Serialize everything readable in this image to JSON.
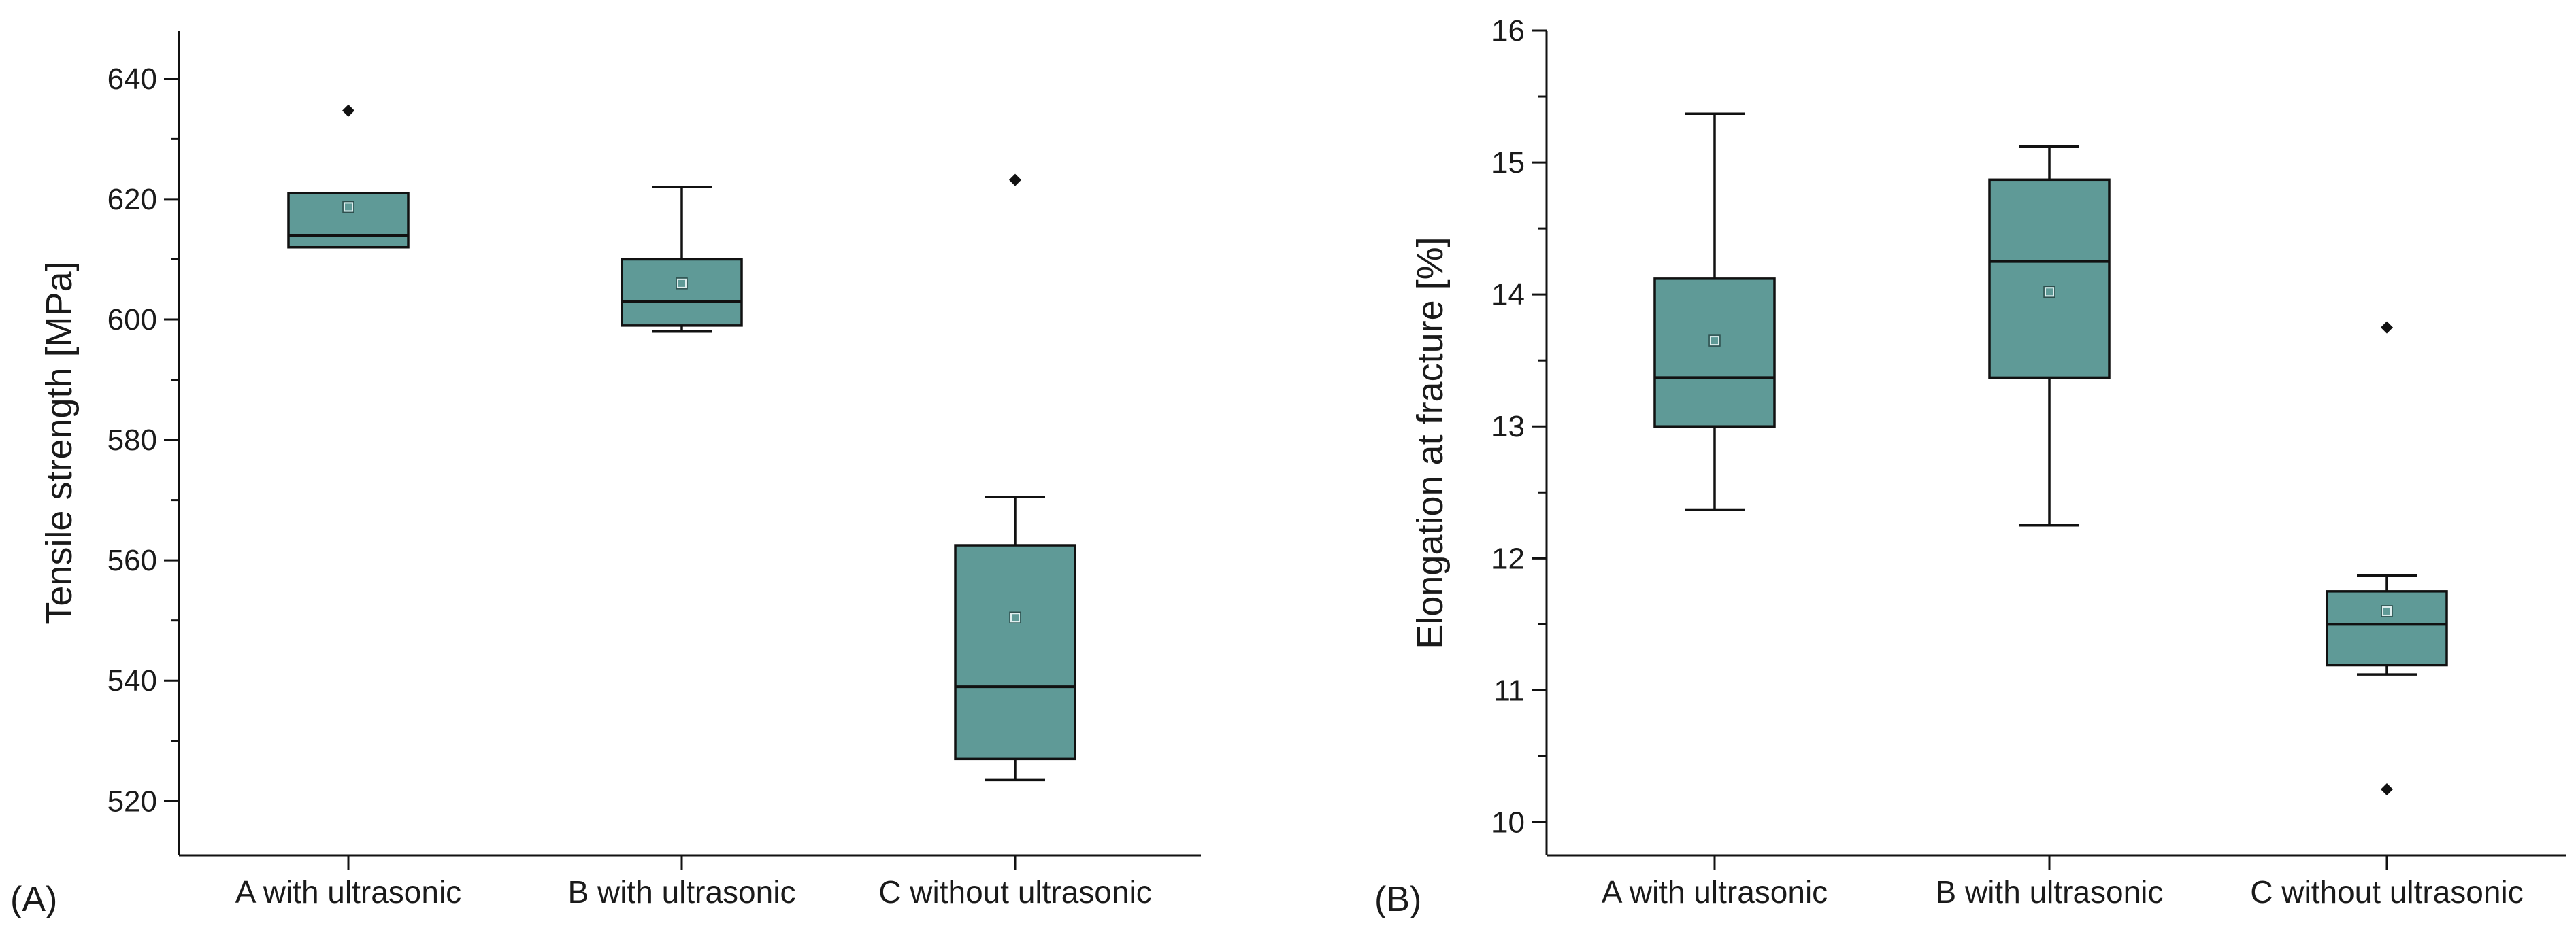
{
  "colors": {
    "box_fill": "#5f9a97",
    "box_stroke": "#111111",
    "axis": "#111111",
    "background": "#ffffff"
  },
  "chart_data": [
    {
      "type": "box",
      "panel_label": "(A)",
      "title": "",
      "xlabel": "",
      "ylabel": "Tensile strength [MPa]",
      "ylim": [
        511,
        648
      ],
      "yticks": [
        520,
        540,
        560,
        580,
        600,
        620,
        640
      ],
      "ytick_labels": [
        "520",
        "540",
        "560",
        "580",
        "600",
        "620",
        "640"
      ],
      "minor_yticks": [
        510,
        530,
        550,
        570,
        590,
        610,
        630
      ],
      "categories": [
        "A with ultrasonic",
        "B with ultrasonic",
        "C without ultrasonic"
      ],
      "boxes": [
        {
          "category": "A with ultrasonic",
          "whisker_low": 612,
          "q1": 612,
          "median": 614,
          "q3": 621,
          "whisker_high": 621,
          "mean": 618.7,
          "outliers": [
            634.7
          ]
        },
        {
          "category": "B with ultrasonic",
          "whisker_low": 598,
          "q1": 599,
          "median": 603,
          "q3": 610,
          "whisker_high": 622,
          "mean": 606,
          "outliers": []
        },
        {
          "category": "C without ultrasonic",
          "whisker_low": 523.5,
          "q1": 527,
          "median": 539,
          "q3": 562.5,
          "whisker_high": 570.5,
          "mean": 550.5,
          "outliers": [
            623.2
          ]
        }
      ]
    },
    {
      "type": "box",
      "panel_label": "(B)",
      "title": "",
      "xlabel": "",
      "ylabel": "Elongation at fracture [%]",
      "ylim": [
        9.75,
        16
      ],
      "yticks": [
        10,
        11,
        12,
        13,
        14,
        15,
        16
      ],
      "ytick_labels": [
        "10",
        "11",
        "12",
        "13",
        "14",
        "15",
        "16"
      ],
      "minor_yticks": [
        10.5,
        11.5,
        12.5,
        13.5,
        14.5,
        15.5
      ],
      "categories": [
        "A with ultrasonic",
        "B  with ultrasonic",
        "C without ultrasonic"
      ],
      "boxes": [
        {
          "category": "A with ultrasonic",
          "whisker_low": 12.37,
          "q1": 13.0,
          "median": 13.37,
          "q3": 14.12,
          "whisker_high": 15.37,
          "mean": 13.65,
          "outliers": []
        },
        {
          "category": "B  with ultrasonic",
          "whisker_low": 12.25,
          "q1": 13.37,
          "median": 14.25,
          "q3": 14.87,
          "whisker_high": 15.12,
          "mean": 14.02,
          "outliers": []
        },
        {
          "category": "C without ultrasonic",
          "whisker_low": 11.12,
          "q1": 11.19,
          "median": 11.5,
          "q3": 11.75,
          "whisker_high": 11.87,
          "mean": 11.6,
          "outliers": [
            13.75,
            10.25
          ]
        }
      ]
    }
  ]
}
